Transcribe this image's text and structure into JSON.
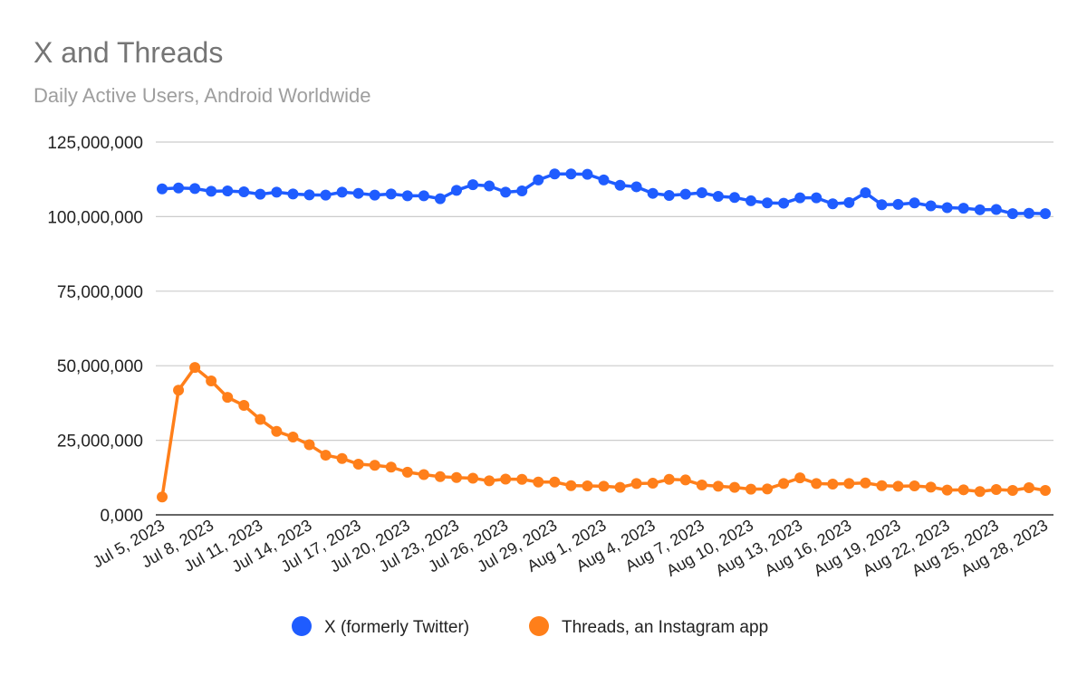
{
  "chart_data": {
    "type": "line",
    "title": "X and Threads",
    "subtitle": "Daily Active Users, Android Worldwide",
    "xlabel": "",
    "ylabel": "",
    "ylim": [
      0,
      125000000
    ],
    "y_ticks": [
      "0,000",
      "25,000,000",
      "50,000,000",
      "75,000,000",
      "100,000,000",
      "125,000,000"
    ],
    "y_tick_values": [
      0,
      25000000,
      50000000,
      75000000,
      100000000,
      125000000
    ],
    "x_tick_labels": [
      "Jul 5, 2023",
      "Jul 8, 2023",
      "Jul 11, 2023",
      "Jul 14, 2023",
      "Jul 17, 2023",
      "Jul 20, 2023",
      "Jul 23, 2023",
      "Jul 26, 2023",
      "Jul 29, 2023",
      "Aug 1, 2023",
      "Aug 4, 2023",
      "Aug 7, 2023",
      "Aug 10, 2023",
      "Aug 13, 2023",
      "Aug 16, 2023",
      "Aug 19, 2023",
      "Aug 22, 2023",
      "Aug 25, 2023",
      "Aug 28, 2023"
    ],
    "x_range": [
      "2023-07-05",
      "2023-08-28"
    ],
    "grid": true,
    "legend_position": "bottom",
    "series": [
      {
        "name": "X (formerly Twitter)",
        "color": "#1f5cff",
        "values": [
          109.3,
          109.6,
          109.4,
          108.5,
          108.6,
          108.3,
          107.5,
          108.2,
          107.6,
          107.3,
          107.2,
          108.2,
          107.8,
          107.2,
          107.6,
          107.0,
          107.0,
          106.0,
          108.8,
          110.7,
          110.3,
          108.2,
          108.6,
          112.3,
          114.3,
          114.3,
          114.2,
          112.3,
          110.5,
          110.0,
          107.8,
          107.1,
          107.5,
          108.0,
          106.8,
          106.4,
          105.3,
          104.6,
          104.5,
          106.3,
          106.3,
          104.3,
          104.7,
          108.0,
          104.0,
          104.1,
          104.6,
          103.6,
          103.0,
          102.8,
          102.3,
          102.4,
          101.0,
          101.1,
          101.0
        ],
        "value_unit_multiplier": 1000000
      },
      {
        "name": "Threads, an Instagram app",
        "color": "#ff7f1a",
        "values": [
          6.0,
          41.8,
          49.4,
          44.9,
          39.4,
          36.7,
          32.0,
          28.0,
          26.1,
          23.5,
          20.0,
          18.9,
          17.0,
          16.6,
          16.0,
          14.3,
          13.5,
          12.8,
          12.5,
          12.3,
          11.4,
          12.0,
          11.9,
          11.0,
          11.0,
          9.8,
          9.7,
          9.6,
          9.2,
          10.5,
          10.6,
          11.9,
          11.7,
          10.0,
          9.6,
          9.2,
          8.6,
          8.7,
          10.5,
          12.4,
          10.5,
          10.3,
          10.5,
          10.7,
          9.8,
          9.6,
          9.7,
          9.3,
          8.3,
          8.4,
          7.8,
          8.5,
          8.2,
          9.1,
          8.2
        ],
        "value_unit_multiplier": 1000000
      }
    ]
  }
}
